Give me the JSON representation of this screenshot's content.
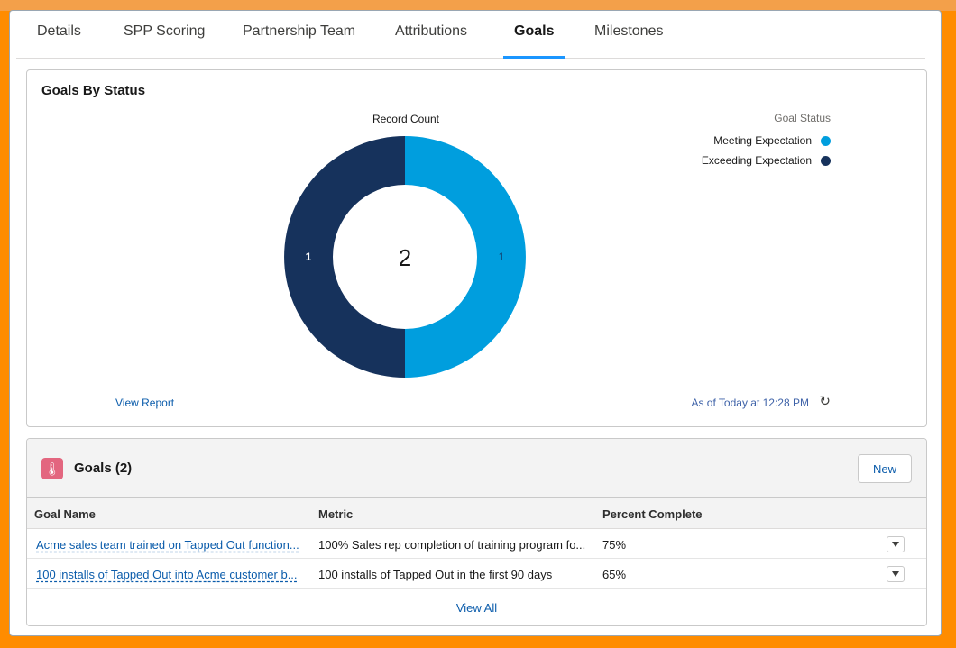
{
  "tabs": [
    {
      "label": "Details"
    },
    {
      "label": "SPP Scoring"
    },
    {
      "label": "Partnership Team"
    },
    {
      "label": "Attributions"
    },
    {
      "label": "Goals"
    },
    {
      "label": "Milestones"
    }
  ],
  "active_tab": "Goals",
  "chart_card": {
    "title": "Goals By Status",
    "view_report": "View Report",
    "as_of": "As of Today at 12:28 PM",
    "refresh_icon": "refresh-icon"
  },
  "chart_data": {
    "type": "pie",
    "title": "Record Count",
    "center_label": "2",
    "legend_title": "Goal Status",
    "legend_placement": "top-right",
    "slices": [
      {
        "label": "Meeting Expectation",
        "value": 1,
        "color": "#009ede"
      },
      {
        "label": "Exceeding Expectation",
        "value": 1,
        "color": "#16325c"
      }
    ]
  },
  "goals": {
    "icon": "thermometer-icon",
    "title": "Goals (2)",
    "new_label": "New",
    "columns": [
      "Goal Name",
      "Metric",
      "Percent Complete"
    ],
    "rows": [
      {
        "name": "Acme sales team trained on Tapped Out function...",
        "metric": "100% Sales rep completion of training program fo...",
        "percent": "75%"
      },
      {
        "name": "100 installs of Tapped Out into Acme customer b...",
        "metric": "100 installs of Tapped Out in the first 90 days",
        "percent": "65%"
      }
    ],
    "view_all": "View All"
  }
}
